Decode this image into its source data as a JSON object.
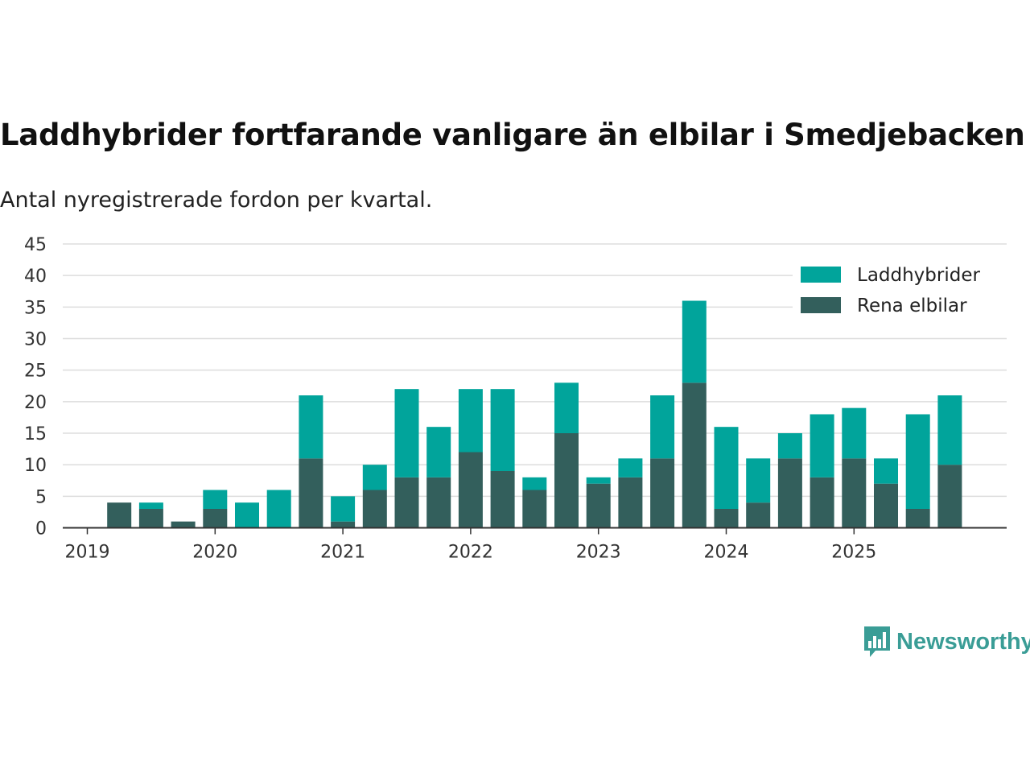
{
  "header": {
    "title": "Laddhybrider fortfarande vanligare än elbilar i Smedjebacken",
    "subtitle": "Antal nyregistrerade fordon per kvartal."
  },
  "brand": {
    "name": "Newsworthy",
    "color": "#3a9d96",
    "icon": "newsworthy-logo-icon"
  },
  "chart_data": {
    "type": "bar",
    "stacked": true,
    "title": "Laddhybrider fortfarande vanligare än elbilar i Smedjebacken",
    "subtitle": "Antal nyregistrerade fordon per kvartal.",
    "xlabel": "",
    "ylabel": "",
    "ylim": [
      0,
      45
    ],
    "yticks": [
      0,
      5,
      10,
      15,
      20,
      25,
      30,
      35,
      40,
      45
    ],
    "year_labels": [
      "2019",
      "2020",
      "2021",
      "2022",
      "2023",
      "2024",
      "2025"
    ],
    "categories": [
      "2019 Q1",
      "2019 Q2",
      "2019 Q3",
      "2019 Q4",
      "2020 Q1",
      "2020 Q2",
      "2020 Q3",
      "2020 Q4",
      "2021 Q1",
      "2021 Q2",
      "2021 Q3",
      "2021 Q4",
      "2022 Q1",
      "2022 Q2",
      "2022 Q3",
      "2022 Q4",
      "2023 Q1",
      "2023 Q2",
      "2023 Q3",
      "2023 Q4",
      "2024 Q1",
      "2024 Q2",
      "2024 Q3",
      "2024 Q4",
      "2025 Q1",
      "2025 Q2",
      "2025 Q3",
      "2025 Q4"
    ],
    "series": [
      {
        "name": "Rena elbilar",
        "color": "#335f5c",
        "values": [
          0,
          4,
          3,
          1,
          3,
          0,
          0,
          11,
          1,
          6,
          8,
          8,
          12,
          9,
          6,
          15,
          7,
          8,
          11,
          23,
          3,
          4,
          11,
          8,
          11,
          7,
          3,
          10
        ]
      },
      {
        "name": "Laddhybrider",
        "color": "#01a49b",
        "values": [
          0,
          0,
          1,
          0,
          3,
          4,
          6,
          10,
          4,
          4,
          14,
          8,
          10,
          13,
          2,
          8,
          1,
          3,
          10,
          13,
          13,
          7,
          4,
          10,
          8,
          4,
          15,
          11
        ]
      }
    ],
    "legend": {
      "position": "top-right",
      "order": [
        "Laddhybrider",
        "Rena elbilar"
      ]
    },
    "grid": true
  }
}
